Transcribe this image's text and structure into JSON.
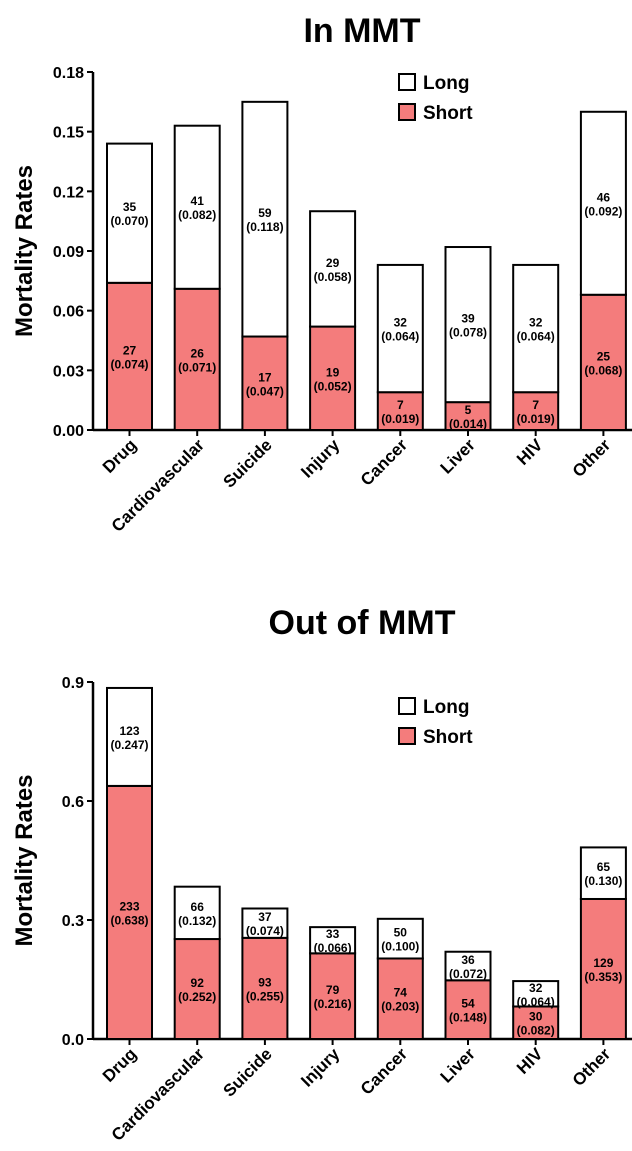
{
  "chart_data": [
    {
      "type": "bar",
      "stacked": true,
      "title": "In MMT",
      "ylabel": "Mortality Rates",
      "xlabel": "",
      "ylim": [
        0,
        0.18
      ],
      "yticks": [
        "0.00",
        "0.03",
        "0.06",
        "0.09",
        "0.12",
        "0.15",
        "0.18"
      ],
      "categories": [
        "Drug",
        "Cardiovascular",
        "Suicide",
        "Injury",
        "Cancer",
        "Liver",
        "HIV",
        "Other"
      ],
      "legend_position": "top-right",
      "series": [
        {
          "name": "Short",
          "color": "#f47c7c",
          "values": [
            0.074,
            0.071,
            0.047,
            0.052,
            0.019,
            0.014,
            0.019,
            0.068
          ],
          "counts": [
            "27",
            "26",
            "17",
            "19",
            "7",
            "5",
            "7",
            "25"
          ],
          "rates": [
            "(0.074)",
            "(0.071)",
            "(0.047)",
            "(0.052)",
            "(0.019)",
            "(0.014)",
            "(0.019)",
            "(0.068)"
          ]
        },
        {
          "name": "Long",
          "color": "#ffffff",
          "values": [
            0.07,
            0.082,
            0.118,
            0.058,
            0.064,
            0.078,
            0.064,
            0.092
          ],
          "counts": [
            "35",
            "41",
            "59",
            "29",
            "32",
            "39",
            "32",
            "46"
          ],
          "rates": [
            "(0.070)",
            "(0.082)",
            "(0.118)",
            "(0.058)",
            "(0.064)",
            "(0.078)",
            "(0.064)",
            "(0.092)"
          ]
        }
      ]
    },
    {
      "type": "bar",
      "stacked": true,
      "title": "Out of MMT",
      "ylabel": "Mortality Rates",
      "xlabel": "",
      "ylim": [
        0,
        0.9
      ],
      "yticks": [
        "0.0",
        "0.3",
        "0.6",
        "0.9"
      ],
      "categories": [
        "Drug",
        "Cardiovascular",
        "Suicide",
        "Injury",
        "Cancer",
        "Liver",
        "HIV",
        "Other"
      ],
      "legend_position": "top-right",
      "series": [
        {
          "name": "Short",
          "color": "#f47c7c",
          "values": [
            0.638,
            0.252,
            0.255,
            0.216,
            0.203,
            0.148,
            0.082,
            0.353
          ],
          "counts": [
            "233",
            "92",
            "93",
            "79",
            "74",
            "54",
            "30",
            "129"
          ],
          "rates": [
            "(0.638)",
            "(0.252)",
            "(0.255)",
            "(0.216)",
            "(0.203)",
            "(0.148)",
            "(0.082)",
            "(0.353)"
          ]
        },
        {
          "name": "Long",
          "color": "#ffffff",
          "values": [
            0.247,
            0.132,
            0.074,
            0.066,
            0.1,
            0.072,
            0.064,
            0.13
          ],
          "counts": [
            "123",
            "66",
            "37",
            "33",
            "50",
            "36",
            "32",
            "65"
          ],
          "rates": [
            "(0.247)",
            "(0.132)",
            "(0.074)",
            "(0.066)",
            "(0.100)",
            "(0.072)",
            "(0.064)",
            "(0.130)"
          ]
        }
      ]
    }
  ]
}
